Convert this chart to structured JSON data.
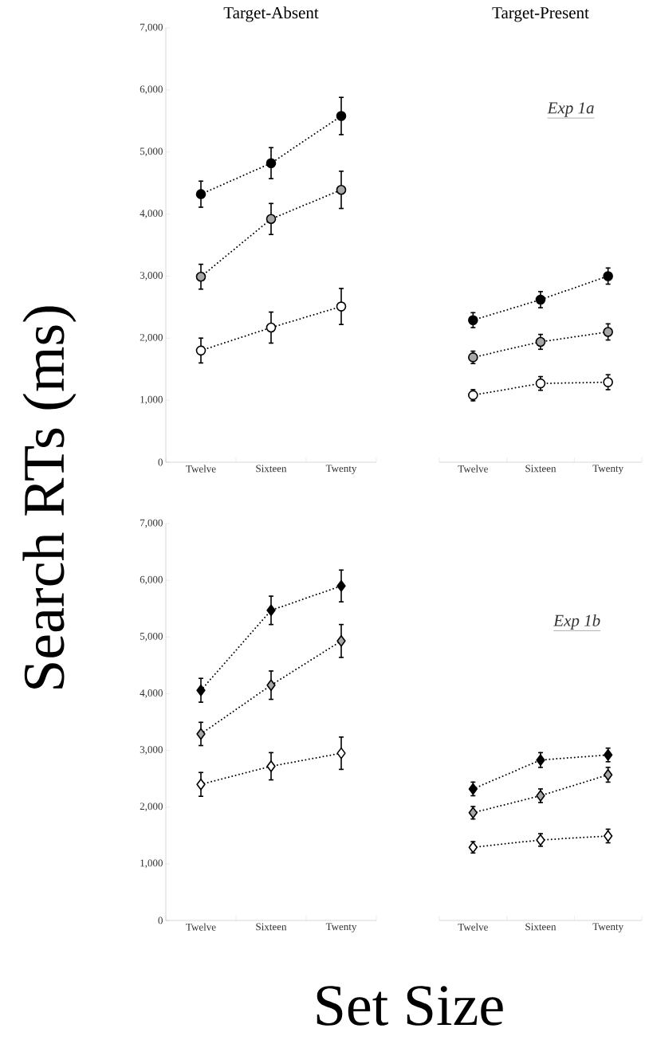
{
  "chart_data": [
    {
      "type": "line",
      "title": "Target-Absent",
      "ylabel": "Search RTs (ms)",
      "categories": [
        "Twelve",
        "Sixteen",
        "Twenty"
      ],
      "ylim": [
        0,
        7000
      ],
      "yticks": [
        0,
        {
          "value": 1000,
          "label": "1,000"
        },
        {
          "value": 2000,
          "label": "2,000"
        },
        {
          "value": 3000,
          "label": "3,000"
        },
        {
          "value": 4000,
          "label": "4,000"
        },
        {
          "value": 5000,
          "label": "5,000"
        },
        {
          "value": 6000,
          "label": "6,000"
        },
        {
          "value": 7000,
          "label": "7,000"
        }
      ],
      "marker": "circle",
      "line_style": "dotted",
      "legend": false,
      "grid": false,
      "series": [
        {
          "color": "#000000",
          "values": [
            4320,
            4820,
            5580
          ],
          "errors": [
            210,
            250,
            300
          ]
        },
        {
          "color": "#a6a6a6",
          "values": [
            2990,
            3920,
            4390
          ],
          "errors": [
            200,
            250,
            300
          ]
        },
        {
          "color": "#ffffff",
          "values": [
            1800,
            2170,
            2510
          ],
          "errors": [
            200,
            250,
            290
          ]
        }
      ]
    },
    {
      "type": "line",
      "title": "Target-Present",
      "annotations": [
        "Exp 1a"
      ],
      "categories": [
        "Twelve",
        "Sixteen",
        "Twenty"
      ],
      "ylim": [
        0,
        7000
      ],
      "tick_labels": "x",
      "marker": "circle",
      "line_style": "dotted",
      "legend": false,
      "grid": false,
      "series": [
        {
          "color": "#000000",
          "values": [
            2290,
            2620,
            3000
          ],
          "errors": [
            120,
            130,
            130
          ]
        },
        {
          "color": "#a6a6a6",
          "values": [
            1690,
            1940,
            2100
          ],
          "errors": [
            100,
            120,
            130
          ]
        },
        {
          "color": "#ffffff",
          "values": [
            1080,
            1270,
            1290
          ],
          "errors": [
            90,
            110,
            120
          ]
        }
      ]
    },
    {
      "type": "line",
      "xlabel": "Set Size",
      "categories": [
        "Twelve",
        "Sixteen",
        "Twenty"
      ],
      "ylim": [
        0,
        7000
      ],
      "yticks": [
        0,
        {
          "value": 1000,
          "label": "1,000"
        },
        {
          "value": 2000,
          "label": "2,000"
        },
        {
          "value": 3000,
          "label": "3,000"
        },
        {
          "value": 4000,
          "label": "4,000"
        },
        {
          "value": 5000,
          "label": "5,000"
        },
        {
          "value": 6000,
          "label": "6,000"
        },
        {
          "value": 7000,
          "label": "7,000"
        }
      ],
      "marker": "diamond",
      "line_style": "dotted",
      "legend": false,
      "grid": false,
      "series": [
        {
          "color": "#000000",
          "values": [
            4060,
            5470,
            5900
          ],
          "errors": [
            210,
            250,
            280
          ]
        },
        {
          "color": "#a6a6a6",
          "values": [
            3290,
            4150,
            4930
          ],
          "errors": [
            205,
            250,
            290
          ]
        },
        {
          "color": "#ffffff",
          "values": [
            2400,
            2720,
            2950
          ],
          "errors": [
            210,
            240,
            285
          ]
        }
      ]
    },
    {
      "type": "line",
      "annotations": [
        "Exp 1b"
      ],
      "categories": [
        "Twelve",
        "Sixteen",
        "Twenty"
      ],
      "ylim": [
        0,
        7000
      ],
      "tick_labels": "x",
      "marker": "diamond",
      "line_style": "dotted",
      "legend": false,
      "grid": false,
      "series": [
        {
          "color": "#000000",
          "values": [
            2320,
            2830,
            2920
          ],
          "errors": [
            120,
            130,
            120
          ]
        },
        {
          "color": "#a6a6a6",
          "values": [
            1900,
            2200,
            2570
          ],
          "errors": [
            110,
            120,
            130
          ]
        },
        {
          "color": "#ffffff",
          "values": [
            1290,
            1420,
            1490
          ],
          "errors": [
            100,
            110,
            120
          ]
        }
      ]
    }
  ]
}
